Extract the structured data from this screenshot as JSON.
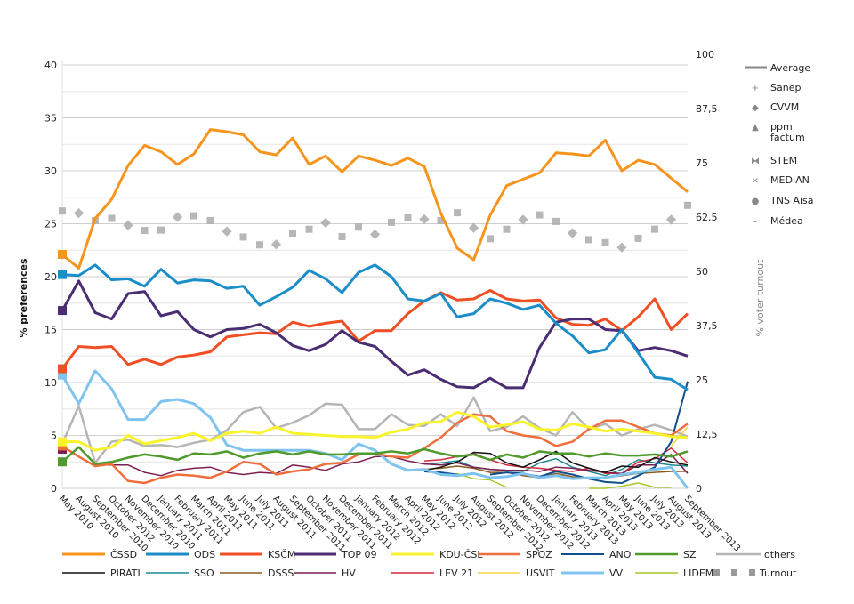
{
  "chart_data": {
    "type": "line",
    "title": "",
    "xlabel": "",
    "ylabel": "% preferences",
    "ylabel_right": "% voter turnout",
    "ylim": [
      0,
      40
    ],
    "ylim_right": [
      0,
      100
    ],
    "yticks": [
      "0",
      "5",
      "10",
      "15",
      "20",
      "25",
      "30",
      "35",
      "40"
    ],
    "yticks_right": [
      "0",
      "12,5",
      "25",
      "37,5",
      "50",
      "62,5",
      "75",
      "87,5",
      "100"
    ],
    "grid": true,
    "categories": [
      "May 2010",
      "August 2010",
      "September 2010",
      "October 2012",
      "November 2010",
      "December 2010",
      "January 2011",
      "February 2011",
      "March 2011",
      "April 2011",
      "May 2011",
      "June 2011",
      "July 2011",
      "August 2011",
      "September 2011",
      "October 2011",
      "November 2011",
      "December 2011",
      "January 2012",
      "February 2012",
      "March 2012",
      "April 2012",
      "May 2012",
      "June 2012",
      "July 2012",
      "August 2012",
      "September 2012",
      "October 2012",
      "November 2012",
      "December 2012",
      "January 2013",
      "February 2013",
      "March 2013",
      "April 2013",
      "May 2013",
      "June 2013",
      "July 2013",
      "August 2013",
      "September 2013"
    ],
    "series": [
      {
        "name": "ČSSD",
        "color": "#f7941d",
        "width": 3,
        "start_marker": true,
        "values": [
          22.1,
          20.8,
          25.5,
          27.3,
          30.5,
          32.4,
          31.8,
          30.6,
          31.6,
          33.9,
          33.7,
          33.4,
          31.8,
          31.5,
          33.1,
          30.6,
          31.4,
          29.9,
          31.4,
          31.0,
          30.5,
          31.2,
          30.4,
          26.0,
          22.7,
          21.6,
          25.8,
          28.6,
          29.2,
          29.8,
          31.7,
          31.6,
          31.4,
          32.9,
          30.0,
          31.0,
          30.6,
          29.3,
          28.0
        ]
      },
      {
        "name": "ODS",
        "color": "#1b8dc9",
        "width": 3,
        "start_marker": true,
        "values": [
          20.2,
          20.1,
          21.1,
          19.7,
          19.8,
          19.1,
          20.7,
          19.4,
          19.7,
          19.6,
          18.9,
          19.1,
          17.3,
          18.1,
          19.0,
          20.6,
          19.8,
          18.5,
          20.4,
          21.1,
          20.0,
          17.9,
          17.7,
          18.4,
          16.2,
          16.5,
          17.9,
          17.5,
          16.9,
          17.3,
          15.6,
          14.4,
          12.8,
          13.1,
          15.0,
          12.8,
          10.5,
          10.3,
          9.3
        ]
      },
      {
        "name": "KSČM",
        "color": "#f04e23",
        "width": 3,
        "start_marker": true,
        "values": [
          11.3,
          13.4,
          13.3,
          13.4,
          11.7,
          12.2,
          11.7,
          12.4,
          12.6,
          12.9,
          14.3,
          14.5,
          14.7,
          14.6,
          15.7,
          15.3,
          15.6,
          15.8,
          13.9,
          14.9,
          14.9,
          16.5,
          17.7,
          18.5,
          17.8,
          17.9,
          18.7,
          17.9,
          17.7,
          17.8,
          16.1,
          15.5,
          15.4,
          16.0,
          14.9,
          16.2,
          17.9,
          15.0,
          16.5
        ]
      },
      {
        "name": "TOP 09",
        "color": "#4b2d73",
        "width": 3,
        "start_marker": true,
        "values": [
          16.8,
          19.6,
          16.6,
          16.0,
          18.4,
          18.6,
          16.3,
          16.7,
          15.0,
          14.3,
          15.0,
          15.1,
          15.5,
          14.7,
          13.5,
          13.0,
          13.6,
          14.9,
          13.8,
          13.4,
          12.0,
          10.7,
          11.2,
          10.3,
          9.6,
          9.5,
          10.4,
          9.5,
          9.5,
          13.3,
          15.7,
          16.0,
          16.0,
          15.0,
          14.9,
          13.0,
          13.3,
          13.0,
          12.5
        ]
      },
      {
        "name": "KDU-ČSL",
        "color": "#f8f32b",
        "width": 3,
        "start_marker": true,
        "values": [
          4.4,
          4.4,
          3.6,
          3.9,
          5.0,
          4.2,
          4.5,
          4.8,
          5.2,
          4.5,
          5.2,
          5.4,
          5.2,
          5.8,
          5.2,
          5.1,
          5.0,
          4.9,
          4.9,
          4.8,
          5.3,
          5.6,
          6.2,
          6.3,
          7.2,
          6.8,
          5.8,
          6.0,
          6.3,
          5.6,
          5.5,
          6.1,
          5.8,
          5.4,
          5.6,
          5.4,
          5.2,
          4.9,
          4.8
        ]
      },
      {
        "name": "SPOZ",
        "color": "#ef6f3c",
        "width": 2.5,
        "start_marker": true,
        "values": [
          4.0,
          3.0,
          2.1,
          2.3,
          0.7,
          0.5,
          1.0,
          1.3,
          1.2,
          1.0,
          1.6,
          2.5,
          2.3,
          1.3,
          1.6,
          1.8,
          2.3,
          2.4,
          3.2,
          3.3,
          3.0,
          2.9,
          3.8,
          4.8,
          6.2,
          7.0,
          6.8,
          5.4,
          5.0,
          4.8,
          4.0,
          4.4,
          5.6,
          6.4,
          6.4,
          5.8,
          5.2,
          5.0,
          6.1
        ]
      },
      {
        "name": "ANO",
        "color": "#0f4f8c",
        "width": 2,
        "start_marker": false,
        "values": [
          null,
          null,
          null,
          null,
          null,
          null,
          null,
          null,
          null,
          null,
          null,
          null,
          null,
          null,
          null,
          null,
          null,
          null,
          null,
          null,
          null,
          null,
          1.6,
          1.5,
          1.3,
          null,
          1.3,
          1.5,
          1.4,
          1.1,
          1.6,
          1.3,
          0.9,
          0.6,
          0.5,
          1.2,
          2.0,
          4.4,
          10.1
        ]
      },
      {
        "name": "SZ",
        "color": "#4e9a2a",
        "width": 2.5,
        "start_marker": true,
        "values": [
          2.5,
          3.9,
          2.3,
          2.5,
          2.9,
          3.2,
          3.0,
          2.7,
          3.3,
          3.2,
          3.5,
          2.9,
          3.3,
          3.5,
          3.2,
          3.5,
          3.2,
          3.2,
          3.3,
          3.3,
          3.5,
          3.3,
          3.7,
          3.3,
          3.0,
          3.2,
          2.7,
          3.2,
          2.9,
          3.5,
          3.3,
          3.3,
          3.0,
          3.3,
          3.1,
          3.1,
          3.2,
          3.0,
          3.5
        ]
      },
      {
        "name": "others",
        "color": "#b5b5b5",
        "width": 2.5,
        "start_marker": false,
        "values": [
          4.2,
          7.8,
          2.4,
          4.4,
          4.6,
          4.0,
          4.1,
          3.9,
          4.3,
          4.6,
          5.5,
          7.2,
          7.7,
          5.7,
          6.2,
          6.9,
          8.0,
          7.9,
          5.6,
          5.6,
          7.0,
          6.0,
          5.9,
          7.0,
          5.9,
          8.6,
          5.4,
          5.8,
          6.8,
          5.7,
          5.0,
          7.2,
          5.6,
          6.1,
          5.0,
          5.6,
          6.0,
          5.5,
          4.9
        ]
      },
      {
        "name": "PIRÁTI",
        "color": "#111111",
        "width": 1.5,
        "start_marker": false,
        "values": [
          null,
          null,
          null,
          null,
          null,
          null,
          null,
          null,
          null,
          null,
          null,
          null,
          null,
          null,
          null,
          null,
          null,
          null,
          null,
          null,
          null,
          null,
          1.7,
          2.0,
          2.5,
          3.4,
          3.3,
          2.4,
          2.0,
          2.7,
          3.5,
          2.4,
          1.9,
          1.5,
          2.1,
          2.0,
          2.9,
          2.5,
          2.2
        ]
      },
      {
        "name": "SSO",
        "color": "#1a8a93",
        "width": 1.5,
        "start_marker": false,
        "values": [
          null,
          null,
          null,
          null,
          null,
          null,
          null,
          null,
          null,
          null,
          null,
          null,
          null,
          null,
          null,
          null,
          null,
          null,
          null,
          null,
          null,
          null,
          2.3,
          2.4,
          2.6,
          2.0,
          1.8,
          1.7,
          1.6,
          2.4,
          2.8,
          2.0,
          1.6,
          1.2,
          1.8,
          2.7,
          2.4,
          2.2,
          2.1
        ]
      },
      {
        "name": "DSSS",
        "color": "#8a5a1e",
        "width": 1.5,
        "start_marker": false,
        "values": [
          null,
          null,
          null,
          null,
          null,
          null,
          null,
          null,
          null,
          null,
          null,
          null,
          null,
          null,
          null,
          null,
          null,
          null,
          null,
          null,
          null,
          null,
          1.8,
          1.9,
          2.1,
          1.9,
          1.5,
          1.5,
          1.2,
          1.0,
          1.4,
          1.1,
          0.9,
          1.0,
          1.2,
          1.4,
          1.5,
          1.6,
          1.6
        ]
      },
      {
        "name": "HV",
        "color": "#7d1e50",
        "width": 1.5,
        "start_marker": true,
        "values": [
          3.7,
          null,
          2.2,
          2.2,
          2.2,
          1.5,
          1.2,
          1.7,
          1.9,
          2.0,
          1.5,
          1.3,
          1.5,
          1.4,
          2.2,
          2.0,
          1.7,
          2.3,
          2.5,
          3.0,
          3.0,
          2.6,
          2.3,
          2.2,
          2.4,
          2.0,
          1.8,
          1.7,
          1.7,
          1.6,
          2.0,
          1.9,
          1.7,
          1.5,
          1.4,
          2.2,
          2.2,
          3.2,
          1.4
        ]
      },
      {
        "name": "LEV 21",
        "color": "#d42b3a",
        "width": 1.5,
        "start_marker": false,
        "values": [
          null,
          null,
          null,
          null,
          null,
          null,
          null,
          null,
          null,
          null,
          null,
          null,
          null,
          null,
          null,
          null,
          null,
          null,
          null,
          null,
          null,
          null,
          2.6,
          2.7,
          3.0,
          3.3,
          2.7,
          2.2,
          2.0,
          1.9,
          1.7,
          1.6,
          1.9,
          1.4,
          1.4,
          2.5,
          2.8,
          3.8,
          2.4
        ]
      },
      {
        "name": "ÚSVIT",
        "color": "#f5d442",
        "width": 1.5,
        "start_marker": false,
        "values": [
          null,
          null,
          null,
          null,
          null,
          null,
          null,
          null,
          null,
          null,
          null,
          null,
          null,
          null,
          null,
          null,
          null,
          null,
          null,
          null,
          null,
          null,
          null,
          null,
          null,
          null,
          null,
          null,
          null,
          null,
          null,
          null,
          null,
          null,
          null,
          null,
          null,
          4.0,
          5.8
        ]
      },
      {
        "name": "VV",
        "color": "#7fc4f0",
        "width": 3,
        "start_marker": true,
        "values": [
          10.7,
          8.0,
          11.1,
          9.4,
          6.5,
          6.5,
          8.2,
          8.4,
          8.0,
          6.7,
          4.1,
          3.6,
          3.6,
          3.6,
          3.6,
          3.6,
          3.3,
          2.7,
          4.2,
          3.6,
          2.3,
          1.7,
          1.8,
          1.3,
          1.2,
          1.4,
          1.0,
          1.1,
          1.4,
          1.0,
          1.2,
          0.9,
          1.0,
          1.0,
          1.3,
          1.5,
          1.8,
          2.0,
          0.0
        ]
      },
      {
        "name": "LIDEM",
        "color": "#a7c72a",
        "width": 1.5,
        "start_marker": false,
        "values": [
          null,
          null,
          null,
          null,
          null,
          null,
          null,
          null,
          null,
          null,
          null,
          null,
          null,
          null,
          null,
          null,
          null,
          null,
          null,
          null,
          null,
          null,
          null,
          null,
          1.4,
          0.9,
          0.8,
          0.1,
          null,
          null,
          null,
          null,
          0.0,
          0.0,
          0.2,
          0.5,
          0.1,
          0.1,
          null
        ]
      }
    ],
    "turnout": {
      "name": "Turnout",
      "color": "#aaaaaa",
      "values": [
        63.9,
        63.4,
        61.7,
        62.2,
        60.6,
        59.4,
        59.5,
        62.5,
        62.8,
        61.7,
        59.2,
        57.9,
        56.1,
        56.2,
        58.8,
        59.7,
        61.2,
        58.0,
        60.2,
        58.5,
        61.3,
        62.3,
        62.0,
        61.7,
        63.5,
        60.0,
        57.5,
        59.7,
        61.9,
        63.0,
        61.5,
        58.8,
        57.3,
        56.6,
        55.5,
        57.6,
        59.7,
        61.9,
        65.2
      ]
    },
    "poll_legend": [
      {
        "name": "Average",
        "symbol": "line"
      },
      {
        "name": "Sanep",
        "symbol": "+"
      },
      {
        "name": "CVVM",
        "symbol": "◆"
      },
      {
        "name": "ppm factum",
        "symbol": "▲"
      },
      {
        "name": "STEM",
        "symbol": "⧓"
      },
      {
        "name": "MEDIAN",
        "symbol": "×"
      },
      {
        "name": "TNS Aisa",
        "symbol": "●"
      },
      {
        "name": "Médea",
        "symbol": "–"
      }
    ],
    "legend_placement": "bottom",
    "poll_legend_placement": "right"
  }
}
